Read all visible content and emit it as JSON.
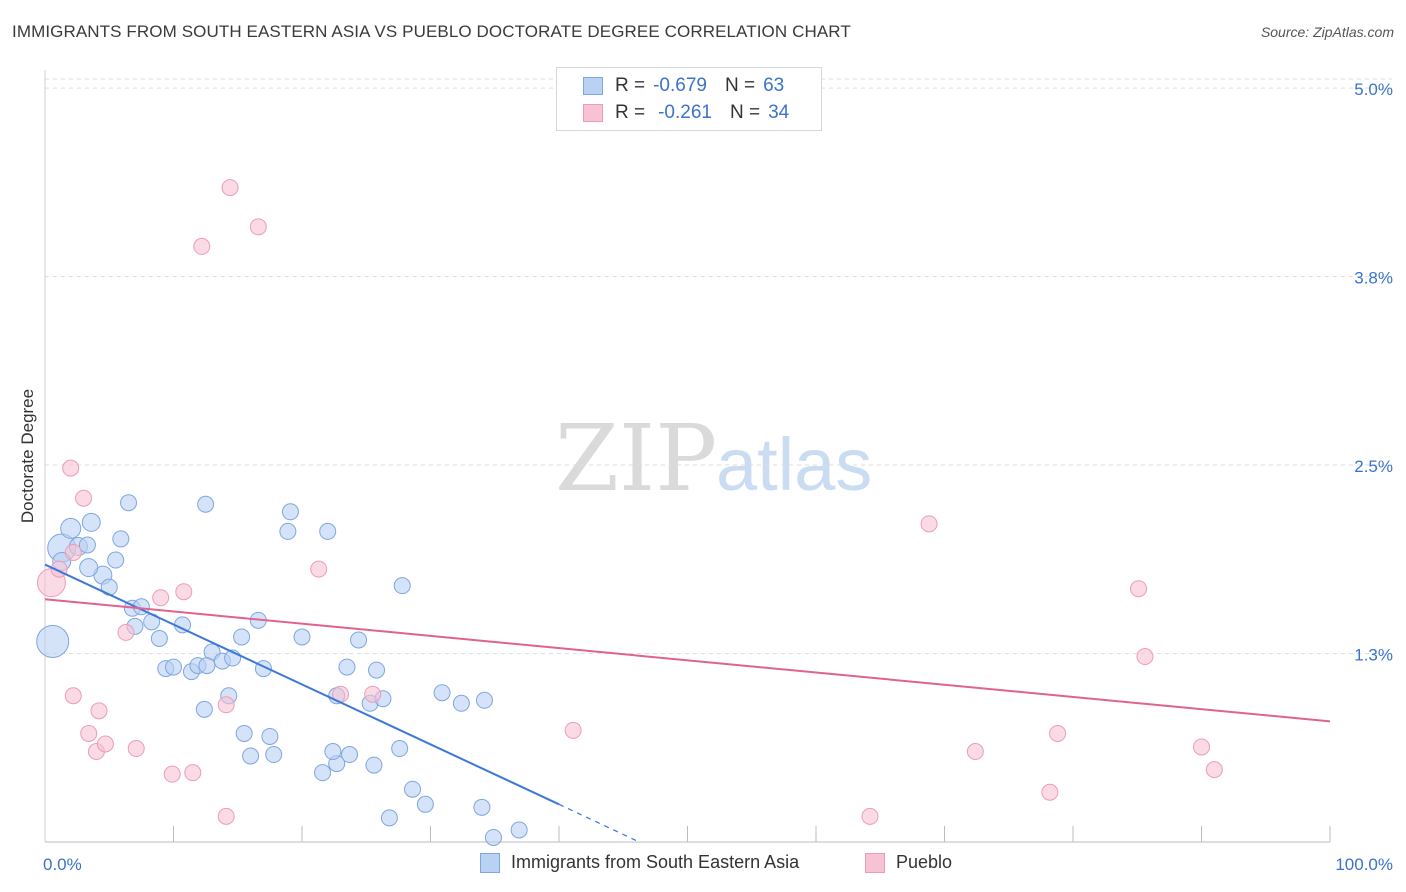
{
  "title": "IMMIGRANTS FROM SOUTH EASTERN ASIA VS PUEBLO DOCTORATE DEGREE CORRELATION CHART",
  "source": "Source: ZipAtlas.com",
  "watermark": {
    "zip": "ZIP",
    "atlas": "atlas"
  },
  "colors": {
    "blue": "#3b78d8",
    "blue_fill": "#b9d1f3",
    "blue_stroke": "#7ea6e0",
    "pink": "#e0628f",
    "pink_fill": "#f7c2d3",
    "pink_stroke": "#ec9db6",
    "tick_label": "#3b73c9",
    "grid": "#dddddd"
  },
  "legend": {
    "series1": {
      "r_label": "R =",
      "r_value": "-0.679",
      "n_label": "N =",
      "n_value": "63"
    },
    "series2": {
      "r_label": "R =",
      "r_value": "-0.261",
      "n_label": "N =",
      "n_value": "34"
    }
  },
  "chart_data": {
    "type": "scatter",
    "title": "IMMIGRANTS FROM SOUTH EASTERN ASIA VS PUEBLO DOCTORATE DEGREE CORRELATION CHART",
    "xlabel": "",
    "ylabel": "Doctorate Degree",
    "xlim": [
      0,
      100
    ],
    "ylim": [
      0,
      5.12
    ],
    "y_ticks": [
      {
        "v": 1.25,
        "label": "1.3%"
      },
      {
        "v": 2.5,
        "label": "2.5%"
      },
      {
        "v": 3.75,
        "label": "3.8%"
      },
      {
        "v": 5.0,
        "label": "5.0%"
      }
    ],
    "x_tick_labels": {
      "min": "0.0%",
      "max": "100.0%"
    },
    "x_minor_ticks": [
      10,
      20,
      30,
      40,
      50,
      60,
      70,
      80,
      90,
      100
    ],
    "series": [
      {
        "name": "Immigrants from South Eastern Asia",
        "color": "blue",
        "points": [
          [
            1.3,
            1.95,
            14
          ],
          [
            2.0,
            2.08,
            10
          ],
          [
            2.6,
            1.96,
            9
          ],
          [
            3.6,
            2.12,
            9
          ],
          [
            4.5,
            1.77,
            9
          ],
          [
            3.4,
            1.82,
            9
          ],
          [
            5.5,
            1.87,
            8
          ],
          [
            5.0,
            1.69,
            8
          ],
          [
            6.5,
            2.25,
            8
          ],
          [
            5.9,
            2.01,
            8
          ],
          [
            6.8,
            1.55,
            8
          ],
          [
            7.0,
            1.43,
            8
          ],
          [
            7.5,
            1.56,
            8
          ],
          [
            8.3,
            1.46,
            8
          ],
          [
            8.9,
            1.35,
            8
          ],
          [
            10.7,
            1.44,
            8
          ],
          [
            9.4,
            1.15,
            8
          ],
          [
            10.0,
            1.16,
            8
          ],
          [
            11.4,
            1.13,
            8
          ],
          [
            12.4,
            0.88,
            8
          ],
          [
            11.9,
            1.17,
            8
          ],
          [
            13.0,
            1.26,
            8
          ],
          [
            12.6,
            1.17,
            8
          ],
          [
            13.8,
            1.2,
            8
          ],
          [
            14.6,
            1.22,
            8
          ],
          [
            14.3,
            0.97,
            8
          ],
          [
            15.3,
            1.36,
            8
          ],
          [
            15.5,
            0.72,
            8
          ],
          [
            16.0,
            0.57,
            8
          ],
          [
            17.0,
            1.15,
            8
          ],
          [
            16.6,
            1.47,
            8
          ],
          [
            17.5,
            0.7,
            8
          ],
          [
            17.8,
            0.58,
            8
          ],
          [
            18.9,
            2.06,
            8
          ],
          [
            19.1,
            2.19,
            8
          ],
          [
            20.0,
            1.36,
            8
          ],
          [
            22.0,
            2.06,
            8
          ],
          [
            12.5,
            2.24,
            8
          ],
          [
            22.7,
            0.52,
            8
          ],
          [
            21.6,
            0.46,
            8
          ],
          [
            22.4,
            0.6,
            8
          ],
          [
            22.7,
            0.97,
            8
          ],
          [
            23.7,
            0.58,
            8
          ],
          [
            23.5,
            1.16,
            8
          ],
          [
            24.4,
            1.34,
            8
          ],
          [
            25.3,
            0.92,
            8
          ],
          [
            25.8,
            1.14,
            8
          ],
          [
            25.6,
            0.51,
            8
          ],
          [
            26.3,
            0.95,
            8
          ],
          [
            26.8,
            0.16,
            8
          ],
          [
            27.6,
            0.62,
            8
          ],
          [
            27.8,
            1.7,
            8
          ],
          [
            28.6,
            0.35,
            8
          ],
          [
            29.6,
            0.25,
            8
          ],
          [
            30.9,
            0.99,
            8
          ],
          [
            32.4,
            0.92,
            8
          ],
          [
            34.2,
            0.94,
            8
          ],
          [
            34.0,
            0.23,
            8
          ],
          [
            34.9,
            0.03,
            8
          ],
          [
            36.9,
            0.08,
            8
          ],
          [
            0.6,
            1.33,
            16
          ],
          [
            1.3,
            1.86,
            9
          ],
          [
            3.3,
            1.97,
            8
          ]
        ]
      },
      {
        "name": "Pueblo",
        "color": "pink",
        "points": [
          [
            2.0,
            2.48,
            8
          ],
          [
            3.0,
            2.28,
            8
          ],
          [
            0.5,
            1.72,
            14
          ],
          [
            1.1,
            1.81,
            8
          ],
          [
            2.2,
            1.92,
            8
          ],
          [
            6.3,
            1.39,
            8
          ],
          [
            9.0,
            1.62,
            8
          ],
          [
            10.8,
            1.66,
            8
          ],
          [
            12.2,
            3.95,
            8
          ],
          [
            14.4,
            4.34,
            8
          ],
          [
            16.6,
            4.08,
            8
          ],
          [
            21.3,
            1.81,
            8
          ],
          [
            2.2,
            0.97,
            8
          ],
          [
            3.4,
            0.72,
            8
          ],
          [
            4.2,
            0.87,
            8
          ],
          [
            4.0,
            0.6,
            8
          ],
          [
            4.7,
            0.65,
            8
          ],
          [
            7.1,
            0.62,
            8
          ],
          [
            9.9,
            0.45,
            8
          ],
          [
            11.5,
            0.46,
            8
          ],
          [
            14.1,
            0.17,
            8
          ],
          [
            14.1,
            0.91,
            8
          ],
          [
            23.0,
            0.98,
            8
          ],
          [
            25.5,
            0.98,
            8
          ],
          [
            41.1,
            0.74,
            8
          ],
          [
            68.8,
            2.11,
            8
          ],
          [
            72.4,
            0.6,
            8
          ],
          [
            78.2,
            0.33,
            8
          ],
          [
            78.8,
            0.72,
            8
          ],
          [
            85.6,
            1.23,
            8
          ],
          [
            85.1,
            1.68,
            8
          ],
          [
            64.2,
            0.17,
            8
          ],
          [
            90.0,
            0.63,
            8
          ],
          [
            91.0,
            0.48,
            8
          ]
        ]
      }
    ],
    "trendlines": [
      {
        "series": "Immigrants from South Eastern Asia",
        "from": [
          0,
          1.84
        ],
        "to": [
          40.0,
          0.25
        ],
        "dashed_to": [
          46.0,
          0.01
        ]
      },
      {
        "series": "Pueblo",
        "from": [
          0,
          1.61
        ],
        "to": [
          100,
          0.8
        ]
      }
    ]
  }
}
